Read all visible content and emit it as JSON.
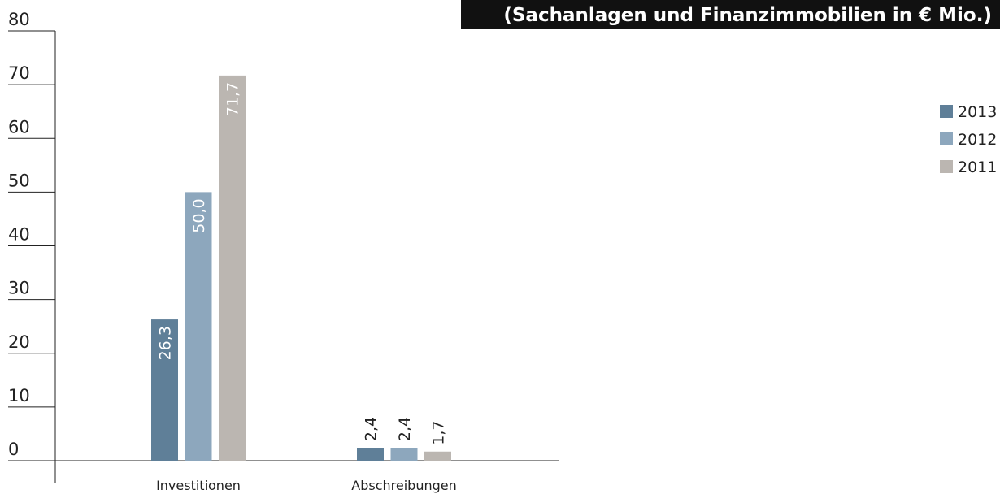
{
  "chart_data": {
    "type": "bar",
    "title": "(Sachanlagen und Finanzimmobilien in € Mio.)",
    "categories": [
      "Investitionen",
      "Abschreibungen"
    ],
    "series": [
      {
        "name": "2013",
        "color": "#5f7f98",
        "values": [
          26.3,
          2.4
        ],
        "value_labels": [
          "26,3",
          "2,4"
        ]
      },
      {
        "name": "2012",
        "color": "#8da7bd",
        "values": [
          50.0,
          2.4
        ],
        "value_labels": [
          "50,0",
          "2,4"
        ]
      },
      {
        "name": "2011",
        "color": "#bbb6b1",
        "values": [
          71.7,
          1.7
        ],
        "value_labels": [
          "71,7",
          "1,7"
        ]
      }
    ],
    "ylim": [
      0,
      80
    ],
    "yticks": [
      0,
      10,
      20,
      30,
      40,
      50,
      60,
      70,
      80
    ],
    "legend": "right"
  }
}
